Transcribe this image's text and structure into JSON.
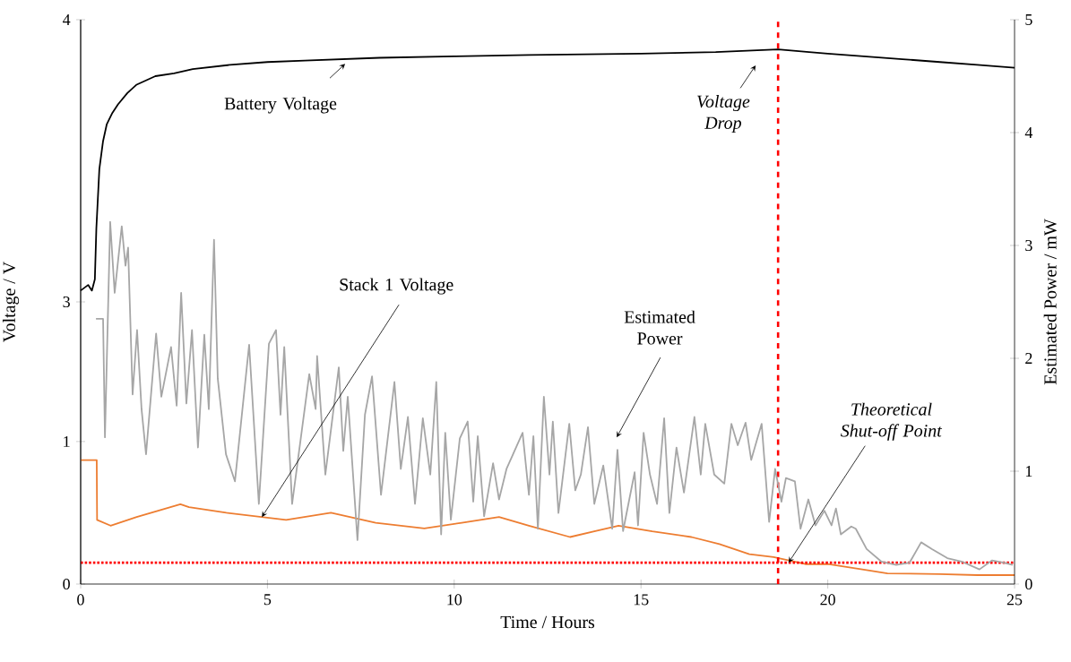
{
  "chart_data": {
    "type": "line",
    "xlabel": "Time / Hours",
    "ylabel": "Voltage / V",
    "y2label": "Estimated Power / mW",
    "xlim": [
      0,
      25
    ],
    "xticks": [
      0,
      5,
      10,
      15,
      20,
      25
    ],
    "ylim": [
      0,
      3.96
    ],
    "yticks": [
      0,
      1
    ],
    "y3lim": [
      2,
      4
    ],
    "y3ticks": [
      3,
      4
    ],
    "y2lim": [
      0,
      5
    ],
    "y2ticks": [
      0,
      1,
      2,
      3,
      4,
      5
    ],
    "marker": "none",
    "line_style": "solid",
    "series": [
      {
        "color": "#000000",
        "axis": "y3",
        "x": [
          0,
          0.2,
          0.3,
          0.38,
          0.42,
          0.5,
          0.6,
          0.7,
          0.85,
          1,
          1.25,
          1.5,
          2,
          2.5,
          3,
          4,
          5,
          6,
          7,
          8,
          10,
          12,
          15,
          17,
          18.67,
          19.5,
          20,
          21,
          22,
          23,
          24,
          25
        ],
        "values": [
          3.04,
          3.06,
          3.04,
          3.08,
          3.26,
          3.47,
          3.57,
          3.63,
          3.67,
          3.7,
          3.74,
          3.77,
          3.8,
          3.81,
          3.825,
          3.84,
          3.85,
          3.855,
          3.86,
          3.865,
          3.87,
          3.875,
          3.88,
          3.885,
          3.895,
          3.885,
          3.88,
          3.87,
          3.86,
          3.85,
          3.84,
          3.83
        ]
      },
      {
        "color": "#ed7d31",
        "x": [
          0,
          0.43,
          0.44,
          0.8,
          1.5,
          2.67,
          2.9,
          3.9,
          5.5,
          6.7,
          7.9,
          9.2,
          10.2,
          11.2,
          12,
          13.1,
          13.75,
          14.4,
          15.3,
          16.35,
          17.1,
          17.9,
          18.55,
          19.4,
          20,
          21,
          21.6,
          23,
          24,
          25
        ],
        "values": [
          0.87,
          0.87,
          0.45,
          0.41,
          0.47,
          0.56,
          0.54,
          0.5,
          0.45,
          0.5,
          0.43,
          0.39,
          0.43,
          0.47,
          0.41,
          0.33,
          0.37,
          0.41,
          0.37,
          0.33,
          0.28,
          0.21,
          0.19,
          0.14,
          0.14,
          0.1,
          0.075,
          0.07,
          0.063,
          0.063
        ]
      },
      {
        "color": "#a6a6a6",
        "axis": "y2",
        "x": [
          0.41,
          0.6,
          0.65,
          0.79,
          0.91,
          1.1,
          1.2,
          1.27,
          1.39,
          1.51,
          1.63,
          1.75,
          2.02,
          2.16,
          2.42,
          2.57,
          2.69,
          2.83,
          2.98,
          3.14,
          3.31,
          3.43,
          3.57,
          3.67,
          3.89,
          4.13,
          4.51,
          4.77,
          5.04,
          5.23,
          5.35,
          5.45,
          5.66,
          6.12,
          6.29,
          6.33,
          6.55,
          6.91,
          7.03,
          7.15,
          7.41,
          7.61,
          7.8,
          8.04,
          8.4,
          8.57,
          8.76,
          8.95,
          9.16,
          9.36,
          9.52,
          9.65,
          9.76,
          9.91,
          10.15,
          10.36,
          10.51,
          10.63,
          10.8,
          11.04,
          11.2,
          11.4,
          11.83,
          12.0,
          12.12,
          12.24,
          12.4,
          12.55,
          12.64,
          12.79,
          13.08,
          13.24,
          13.39,
          13.58,
          13.75,
          13.99,
          14.23,
          14.37,
          14.52,
          14.83,
          14.92,
          15.07,
          15.24,
          15.43,
          15.62,
          15.76,
          15.95,
          16.15,
          16.43,
          16.6,
          16.72,
          16.96,
          17.23,
          17.42,
          17.59,
          17.8,
          17.95,
          18.23,
          18.43,
          18.59,
          18.76,
          18.88,
          19.12,
          19.27,
          19.48,
          19.67,
          19.91,
          20.1,
          20.22,
          20.35,
          20.63,
          20.75,
          21.04,
          21.43,
          21.83,
          22.19,
          22.5,
          22.79,
          23.2,
          23.58,
          24.06,
          24.4,
          24.71,
          24.95
        ],
        "values": [
          2.35,
          2.35,
          1.3,
          3.21,
          2.58,
          3.17,
          2.82,
          2.98,
          1.68,
          2.25,
          1.55,
          1.15,
          2.22,
          1.66,
          2.1,
          1.58,
          2.58,
          1.6,
          2.25,
          1.21,
          2.21,
          1.55,
          3.05,
          1.82,
          1.15,
          0.91,
          2.12,
          0.71,
          2.13,
          2.25,
          1.5,
          2.1,
          0.71,
          1.86,
          1.55,
          2.02,
          0.97,
          1.92,
          1.18,
          1.66,
          0.39,
          1.5,
          1.84,
          0.79,
          1.79,
          1.02,
          1.48,
          0.71,
          1.47,
          0.97,
          1.79,
          0.44,
          1.34,
          0.57,
          1.29,
          1.44,
          0.73,
          1.31,
          0.6,
          1.07,
          0.75,
          1.02,
          1.34,
          0.79,
          1.31,
          0.49,
          1.66,
          0.97,
          1.44,
          0.63,
          1.42,
          0.83,
          0.97,
          1.39,
          0.71,
          1.05,
          0.49,
          1.19,
          0.47,
          0.99,
          0.52,
          1.34,
          0.97,
          0.71,
          1.47,
          0.63,
          1.21,
          0.81,
          1.48,
          0.97,
          1.42,
          0.97,
          0.89,
          1.42,
          1.23,
          1.43,
          1.1,
          1.42,
          0.55,
          1.02,
          0.73,
          0.94,
          0.91,
          0.49,
          0.75,
          0.52,
          0.65,
          0.52,
          0.67,
          0.44,
          0.51,
          0.49,
          0.31,
          0.2,
          0.17,
          0.19,
          0.37,
          0.31,
          0.23,
          0.2,
          0.13,
          0.21,
          0.19,
          0.17
        ]
      }
    ],
    "ref_lines": [
      {
        "axis": "x",
        "value": 18.67,
        "color": "#ff0000",
        "line_style": "dashed"
      },
      {
        "axis": "y",
        "value": 0.15,
        "color": "#ff0000",
        "line_style": "dotted"
      }
    ],
    "annotations": [
      {
        "text": "Battery Voltage",
        "x": 7.08,
        "y": 3.65
      },
      {
        "text": "Stack 1 Voltage",
        "x": 4.85,
        "y": 0.47
      },
      "Estimated Power",
      "*Voltage Drop*",
      {
        "text": "*Theoretical Shut-off Point*",
        "x": 18.95,
        "y": 0.15
      }
    ]
  }
}
